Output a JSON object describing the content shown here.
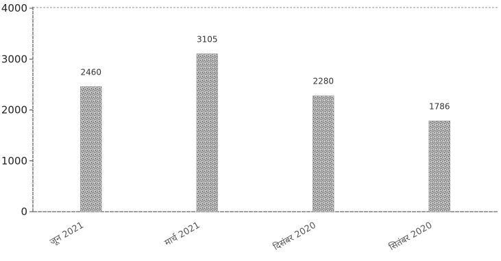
{
  "chart_data": {
    "type": "bar",
    "categories": [
      "जून 2021",
      "मार्च 2021",
      "दिसंबर 2020",
      "सितंबर 2020"
    ],
    "values": [
      2460,
      3105,
      2280,
      1786
    ],
    "data_labels": [
      "2460",
      "3105",
      "2280",
      "1786"
    ],
    "ylim": [
      0,
      4000
    ],
    "yticks": [
      0,
      1000,
      2000,
      3000,
      4000
    ],
    "ytick_labels": [
      "0",
      "1000",
      "2000",
      "3000",
      "4000"
    ],
    "grid": false,
    "bar_color": "#8a8a8a",
    "axis_color": "#555555"
  }
}
